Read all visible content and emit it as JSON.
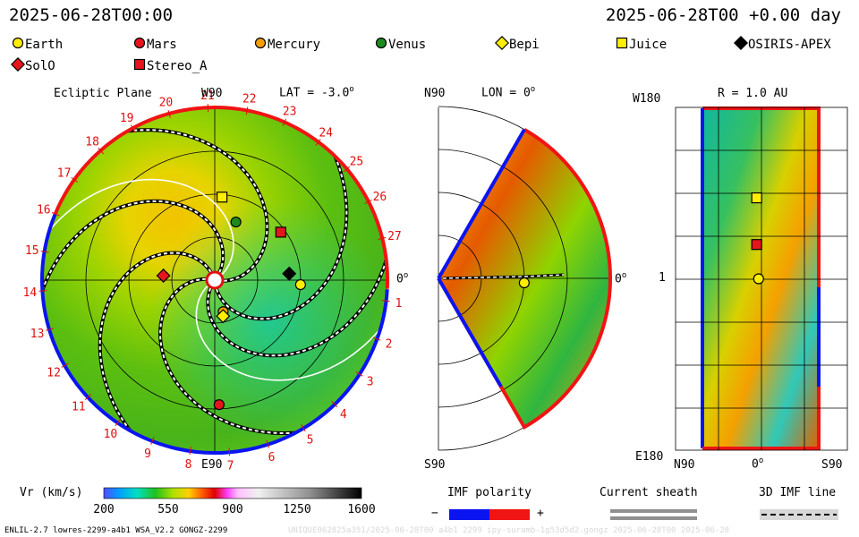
{
  "header": {
    "left_time": "2025-06-28T00:00",
    "right_time": "2025-06-28T00 +0.00 day"
  },
  "legend": [
    {
      "name": "Earth",
      "shape": "circle",
      "color": "#ffee00"
    },
    {
      "name": "Mars",
      "shape": "circle",
      "color": "#e8141c"
    },
    {
      "name": "Mercury",
      "shape": "circle",
      "color": "#f5a000"
    },
    {
      "name": "Venus",
      "shape": "circle",
      "color": "#1e8a1e"
    },
    {
      "name": "Bepi",
      "shape": "diamond",
      "color": "#ffee00"
    },
    {
      "name": "Juice",
      "shape": "square",
      "color": "#ffee00"
    },
    {
      "name": "OSIRIS-APEX",
      "shape": "diamond",
      "color": "#000000"
    },
    {
      "name": "SolO",
      "shape": "diamond",
      "color": "#e8141c"
    },
    {
      "name": "Stereo_A",
      "shape": "square",
      "color": "#e8141c"
    }
  ],
  "panels": {
    "ecliptic": {
      "title": "Ecliptic Plane",
      "lat": "LAT = -3.0",
      "lat_deg": "o",
      "top": "W90",
      "bottom": "E90",
      "right": "0",
      "right_deg": "o",
      "rim_labels": [
        "1",
        "2",
        "3",
        "4",
        "5",
        "6",
        "7",
        "8",
        "9",
        "10",
        "11",
        "12",
        "13",
        "14",
        "15",
        "16",
        "17",
        "18",
        "19",
        "20",
        "21",
        "22",
        "23",
        "24",
        "25",
        "26",
        "27"
      ]
    },
    "meridional": {
      "title": "LON = 0",
      "title_deg": "o",
      "top": "N90",
      "bottom": "S90",
      "right": "0",
      "right_deg": "o"
    },
    "rmap": {
      "title": "R = 1.0 AU",
      "top": "W180",
      "mid": "1",
      "bottom": "E180",
      "x_left": "N90",
      "x_mid": "0",
      "x_mid_deg": "o",
      "x_right": "S90"
    }
  },
  "colorbar": {
    "label": "Vr (km/s)",
    "ticks": [
      "200",
      "550",
      "900",
      "1250",
      "1600"
    ],
    "values": [
      200,
      550,
      900,
      1250,
      1600
    ],
    "range": [
      200,
      1600
    ]
  },
  "imf": {
    "label": "IMF polarity",
    "minus": "−",
    "plus": "+",
    "negative_color": "#0a14f0",
    "positive_color": "#f01414"
  },
  "sheath": {
    "label": "Current sheath"
  },
  "imf_line": {
    "label": "3D IMF line"
  },
  "footer": {
    "left": "ENLIL-2.7 lowres-2299-a4b1 WSA_V2.2 GONGZ-2299",
    "right": "UNIQUE062825a351/2025-06-28T00 a4b1 2299 ipy-suramb-1g53d5d2.gongz 2025-06-28T00  2025-06-28"
  },
  "chart_data": {
    "type": "heatmap",
    "quantity": "Vr (km/s)",
    "ecliptic_bodies": [
      {
        "name": "Earth",
        "r_au": 1.0,
        "lon_deg": -3
      },
      {
        "name": "Mars",
        "r_au": 1.45,
        "lon_deg": -88
      },
      {
        "name": "Mercury",
        "r_au": 0.38,
        "lon_deg": -75
      },
      {
        "name": "Venus",
        "r_au": 0.72,
        "lon_deg": 70
      },
      {
        "name": "Bepi",
        "r_au": 0.43,
        "lon_deg": -77
      },
      {
        "name": "Juice",
        "r_au": 0.97,
        "lon_deg": 85
      },
      {
        "name": "OSIRIS-APEX",
        "r_au": 0.87,
        "lon_deg": 5
      },
      {
        "name": "SolO",
        "r_au": 0.6,
        "lon_deg": 175
      },
      {
        "name": "Stereo_A",
        "r_au": 0.95,
        "lon_deg": 36
      }
    ],
    "meridional_bodies": [
      {
        "name": "Earth",
        "r_au": 1.0,
        "lat_deg": -3
      }
    ],
    "rmap_bodies": [
      {
        "name": "Juice",
        "lat_deg": 5,
        "lon_deg": 85
      },
      {
        "name": "Stereo_A",
        "lat_deg": 5,
        "lon_deg": 36
      },
      {
        "name": "Earth",
        "lat_deg": 3,
        "lon_deg": 0
      }
    ]
  }
}
